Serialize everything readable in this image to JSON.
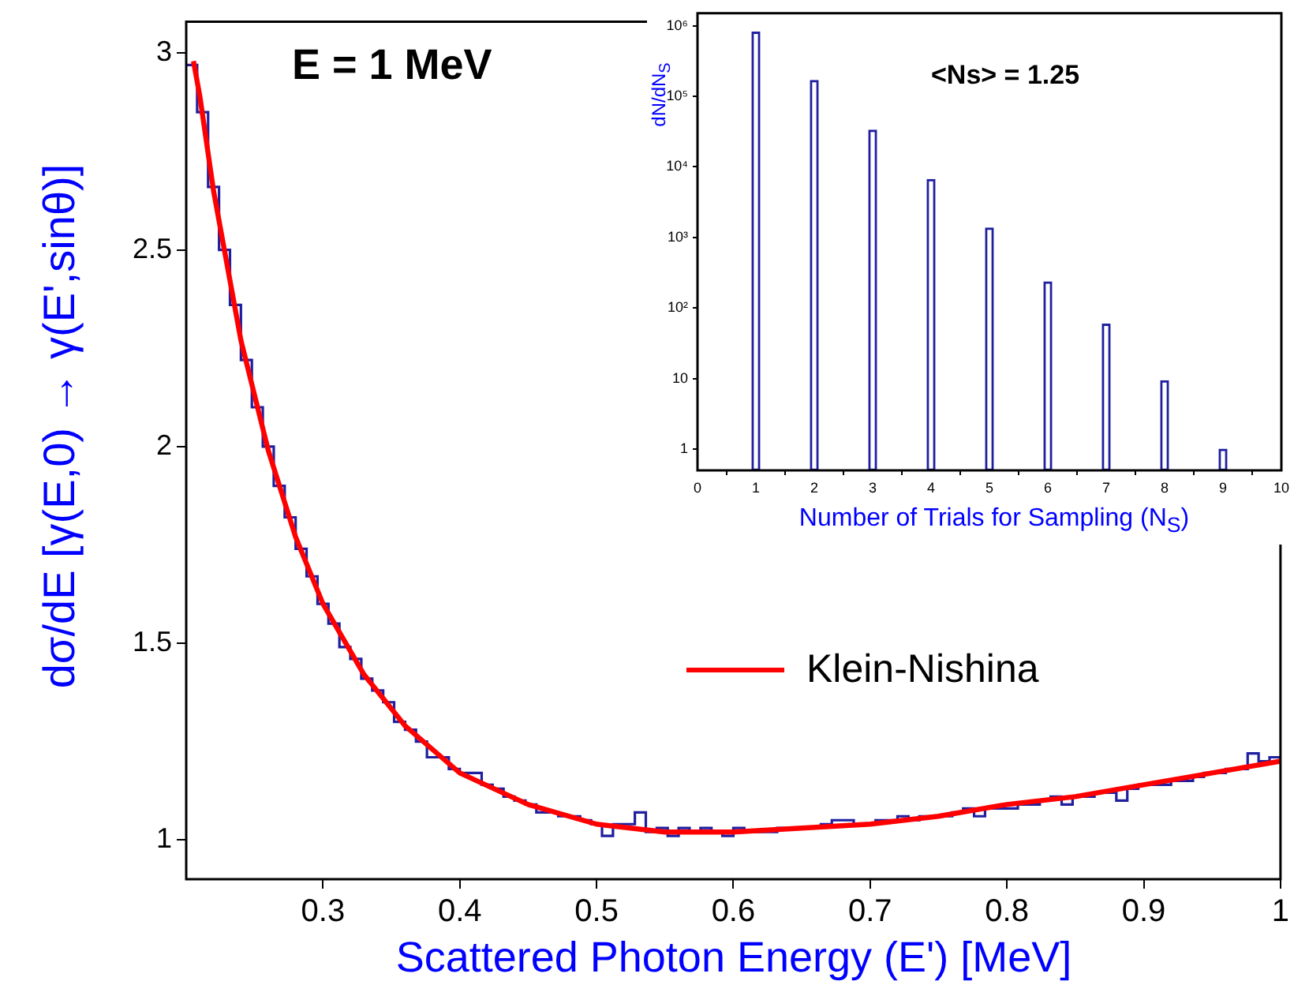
{
  "chart_data": [
    {
      "type": "histogram",
      "xlabel": "Scattered Photon Energy (E') [MeV]",
      "ylabel": "dσ/dE [γ(E,0) → γ(E',sinθ)]",
      "annotations": [
        "E = 1 MeV"
      ],
      "xlim": [
        0.2,
        1
      ],
      "ylim": [
        0.9,
        3.08
      ],
      "xticks": [
        0.3,
        0.4,
        0.5,
        0.6,
        0.7,
        0.8,
        0.9,
        1
      ],
      "yticks": [
        1,
        1.5,
        2,
        2.5,
        3
      ],
      "legend": "right",
      "series": [
        {
          "type": "histogram",
          "color": "#1f1fa0",
          "bins": [
            0.2,
            0.208,
            0.216,
            0.224,
            0.232,
            0.24,
            0.248,
            0.256,
            0.264,
            0.272,
            0.28,
            0.288,
            0.296,
            0.304,
            0.312,
            0.32,
            0.328,
            0.336,
            0.344,
            0.352,
            0.36,
            0.368,
            0.376,
            0.384,
            0.392,
            0.4,
            0.408,
            0.416,
            0.424,
            0.432,
            0.44,
            0.448,
            0.456,
            0.464,
            0.472,
            0.48,
            0.488,
            0.496,
            0.504,
            0.512,
            0.52,
            0.528,
            0.536,
            0.544,
            0.552,
            0.56,
            0.568,
            0.576,
            0.584,
            0.592,
            0.6,
            0.608,
            0.616,
            0.624,
            0.632,
            0.64,
            0.648,
            0.656,
            0.664,
            0.672,
            0.68,
            0.688,
            0.696,
            0.704,
            0.712,
            0.72,
            0.728,
            0.736,
            0.744,
            0.752,
            0.76,
            0.768,
            0.776,
            0.784,
            0.792,
            0.8,
            0.808,
            0.816,
            0.824,
            0.832,
            0.84,
            0.848,
            0.856,
            0.864,
            0.872,
            0.88,
            0.888,
            0.896,
            0.904,
            0.912,
            0.92,
            0.928,
            0.936,
            0.944,
            0.952,
            0.96,
            0.968,
            0.976,
            0.984,
            0.992,
            1
          ],
          "values": [
            2.97,
            2.85,
            2.66,
            2.5,
            2.36,
            2.22,
            2.1,
            2,
            1.9,
            1.82,
            1.74,
            1.67,
            1.6,
            1.55,
            1.49,
            1.46,
            1.41,
            1.38,
            1.35,
            1.3,
            1.28,
            1.25,
            1.21,
            1.21,
            1.18,
            1.17,
            1.17,
            1.14,
            1.13,
            1.11,
            1.1,
            1.09,
            1.07,
            1.07,
            1.06,
            1.06,
            1.05,
            1.04,
            1.01,
            1.04,
            1.04,
            1.07,
            1.02,
            1.03,
            1.01,
            1.03,
            1.02,
            1.03,
            1.02,
            1.01,
            1.03,
            1.02,
            1.02,
            1.02,
            1.03,
            1.03,
            1.03,
            1.03,
            1.04,
            1.05,
            1.05,
            1.04,
            1.04,
            1.05,
            1.05,
            1.06,
            1.05,
            1.06,
            1.06,
            1.06,
            1.07,
            1.08,
            1.06,
            1.08,
            1.08,
            1.08,
            1.09,
            1.09,
            1.1,
            1.11,
            1.09,
            1.11,
            1.11,
            1.12,
            1.12,
            1.1,
            1.13,
            1.14,
            1.14,
            1.14,
            1.15,
            1.15,
            1.16,
            1.17,
            1.17,
            1.18,
            1.18,
            1.22,
            1.2,
            1.21
          ]
        },
        {
          "type": "line",
          "name": "Klein-Nishina",
          "color": "#ff0000",
          "x": [
            0.2053,
            0.21,
            0.22,
            0.24,
            0.26,
            0.28,
            0.3,
            0.33,
            0.36,
            0.4,
            0.45,
            0.5,
            0.55,
            0.6,
            0.65,
            0.7,
            0.75,
            0.8,
            0.85,
            0.9,
            0.95,
            1
          ],
          "values": [
            2.98,
            2.89,
            2.65,
            2.27,
            1.99,
            1.77,
            1.6,
            1.42,
            1.29,
            1.17,
            1.09,
            1.04,
            1.02,
            1.02,
            1.03,
            1.04,
            1.06,
            1.09,
            1.11,
            1.14,
            1.17,
            1.2
          ]
        }
      ]
    },
    {
      "type": "bar",
      "xlabel": "Number of Trials for Sampling (N$_{S}$)",
      "ylabel": "dN/dN$_{S}$",
      "annotations": [
        "<Ns> = 1.25"
      ],
      "log": "y",
      "xlim": [
        0,
        10
      ],
      "ylim": [
        0.5,
        1500000
      ],
      "xticks": [
        0,
        1,
        2,
        3,
        4,
        5,
        6,
        7,
        8,
        9,
        10
      ],
      "yticks": [
        1,
        10,
        {
          "value": 100,
          "label": "10²"
        },
        {
          "value": 1000,
          "label": "10³"
        },
        {
          "value": 10000,
          "label": "10⁴"
        },
        {
          "value": 100000,
          "label": "10⁵"
        },
        {
          "value": 1000000,
          "label": "10⁶"
        }
      ],
      "series": [
        {
          "color": "#1f1fa0",
          "x": [
            1,
            2,
            3,
            4,
            5,
            6,
            7,
            8,
            9
          ],
          "values": [
            810000,
            168000,
            33000,
            6600,
            1360,
            235,
            59,
            9.3,
            1
          ]
        }
      ]
    }
  ]
}
